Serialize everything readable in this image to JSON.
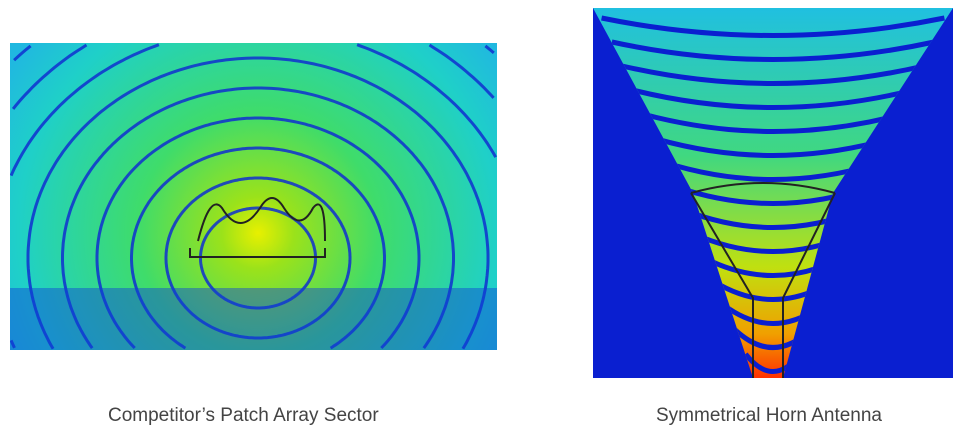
{
  "figures": [
    {
      "caption": "Competitor’s Patch Array Sector"
    },
    {
      "caption": "Symmetrical Horn Antenna"
    }
  ],
  "colors": {
    "field_high": "#ff2a00",
    "field_mid": "#9be21a",
    "field_low": "#1fd6c0",
    "background": "#0a1fd0"
  }
}
